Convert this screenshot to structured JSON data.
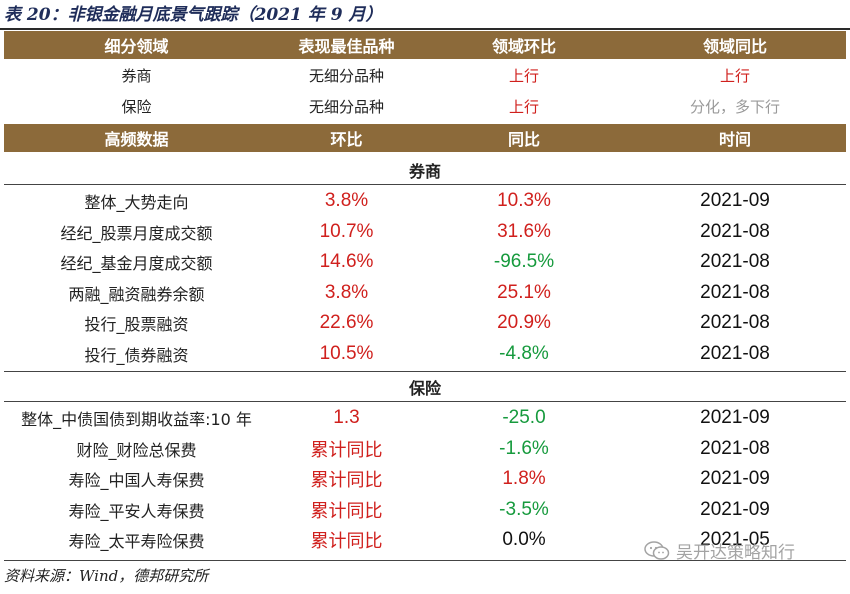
{
  "title": "表 20：非银金融月底景气跟踪（2021 年 9 月）",
  "header1": [
    "细分领域",
    "表现最佳品种",
    "领域环比",
    "领域同比"
  ],
  "summary": [
    {
      "sector": "券商",
      "best": "无细分品种",
      "mom": "上行",
      "yoy": "上行",
      "mom_color": "#d0201d",
      "yoy_color": "#d0201d"
    },
    {
      "sector": "保险",
      "best": "无细分品种",
      "mom": "上行",
      "yoy": "分化，多下行",
      "mom_color": "#d0201d",
      "yoy_color": "#9a9a9a"
    }
  ],
  "header2": [
    "高频数据",
    "环比",
    "同比",
    "时间"
  ],
  "sections": [
    {
      "name": "券商",
      "rows": [
        {
          "item": "整体_大势走向",
          "mom": "3.8%",
          "yoy": "10.3%",
          "time": "2021-09",
          "mom_c": "red",
          "yoy_c": "red"
        },
        {
          "item": "经纪_股票月度成交额",
          "mom": "10.7%",
          "yoy": "31.6%",
          "time": "2021-08",
          "mom_c": "red",
          "yoy_c": "red"
        },
        {
          "item": "经纪_基金月度成交额",
          "mom": "14.6%",
          "yoy": "-96.5%",
          "time": "2021-08",
          "mom_c": "red",
          "yoy_c": "green"
        },
        {
          "item": "两融_融资融券余额",
          "mom": "3.8%",
          "yoy": "25.1%",
          "time": "2021-08",
          "mom_c": "red",
          "yoy_c": "red"
        },
        {
          "item": "投行_股票融资",
          "mom": "22.6%",
          "yoy": "20.9%",
          "time": "2021-08",
          "mom_c": "red",
          "yoy_c": "red"
        },
        {
          "item": "投行_债券融资",
          "mom": "10.5%",
          "yoy": "-4.8%",
          "time": "2021-08",
          "mom_c": "red",
          "yoy_c": "green"
        }
      ]
    },
    {
      "name": "保险",
      "rows": [
        {
          "item": "整体_中债国债到期收益率:10 年",
          "mom": "1.3",
          "yoy": "-25.0",
          "time": "2021-09",
          "mom_c": "red",
          "yoy_c": "green"
        },
        {
          "item": "财险_财险总保费",
          "mom": "累计同比",
          "yoy": "-1.6%",
          "time": "2021-08",
          "mom_c": "red",
          "yoy_c": "green"
        },
        {
          "item": "寿险_中国人寿保费",
          "mom": "累计同比",
          "yoy": "1.8%",
          "time": "2021-09",
          "mom_c": "red",
          "yoy_c": "red"
        },
        {
          "item": "寿险_平安人寿保费",
          "mom": "累计同比",
          "yoy": "-3.5%",
          "time": "2021-09",
          "mom_c": "red",
          "yoy_c": "green"
        },
        {
          "item": "寿险_太平寿险保费",
          "mom": "累计同比",
          "yoy": "0.0%",
          "time": "2021-05",
          "mom_c": "red",
          "yoy_c": "black"
        }
      ]
    }
  ],
  "source": "资料来源：Wind，德邦研究所",
  "watermark": "吴开达策略知行"
}
